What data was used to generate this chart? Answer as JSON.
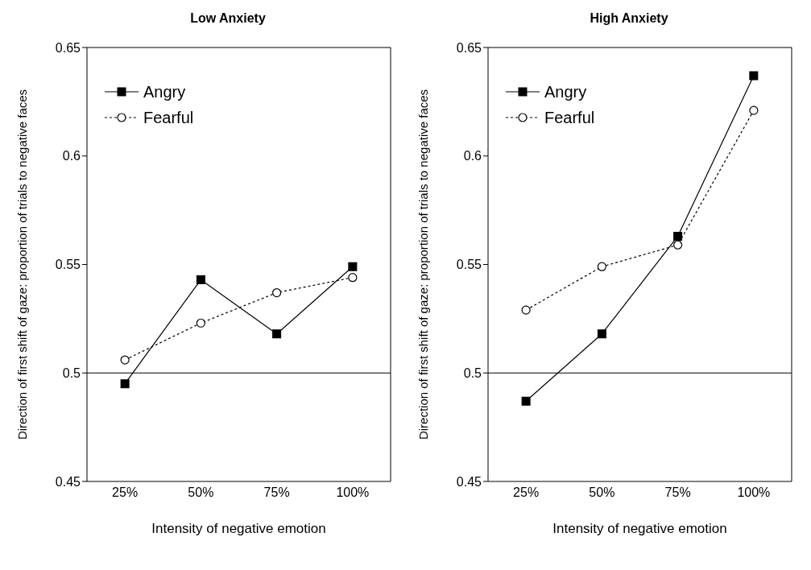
{
  "chart_data": [
    {
      "type": "line",
      "title": "Low Anxiety",
      "xlabel": "Intensity of negative emotion",
      "ylabel": "Direction of first shift of gaze: proportion of trials to negative faces",
      "categories": [
        "25%",
        "50%",
        "75%",
        "100%"
      ],
      "series": [
        {
          "name": "Angry",
          "color": "#000000",
          "marker": "square",
          "line_style": "solid",
          "values": [
            0.495,
            0.543,
            0.518,
            0.549
          ]
        },
        {
          "name": "Fearful",
          "color": "#000000",
          "marker": "circle",
          "line_style": "dotted",
          "values": [
            0.506,
            0.523,
            0.537,
            0.544
          ]
        }
      ],
      "ylim": [
        0.45,
        0.65
      ],
      "yticks": [
        0.45,
        0.5,
        0.55,
        0.6,
        0.65
      ],
      "grid": false,
      "legend": "top left",
      "ref_lines": [
        {
          "axis": "y",
          "value": 0.5,
          "color": "#000000"
        }
      ]
    },
    {
      "type": "line",
      "title": "High Anxiety",
      "xlabel": "Intensity of negative emotion",
      "ylabel": "Direction of first shift of gaze: proportion of trials to negative faces",
      "categories": [
        "25%",
        "50%",
        "75%",
        "100%"
      ],
      "series": [
        {
          "name": "Angry",
          "color": "#000000",
          "marker": "square",
          "line_style": "solid",
          "values": [
            0.487,
            0.518,
            0.563,
            0.637
          ]
        },
        {
          "name": "Fearful",
          "color": "#000000",
          "marker": "circle",
          "line_style": "dotted",
          "values": [
            0.529,
            0.549,
            0.559,
            0.621
          ]
        }
      ],
      "ylim": [
        0.45,
        0.65
      ],
      "yticks": [
        0.45,
        0.5,
        0.55,
        0.6,
        0.65
      ],
      "grid": false,
      "legend": "top left",
      "ref_lines": [
        {
          "axis": "y",
          "value": 0.5,
          "color": "#000000"
        }
      ]
    }
  ]
}
